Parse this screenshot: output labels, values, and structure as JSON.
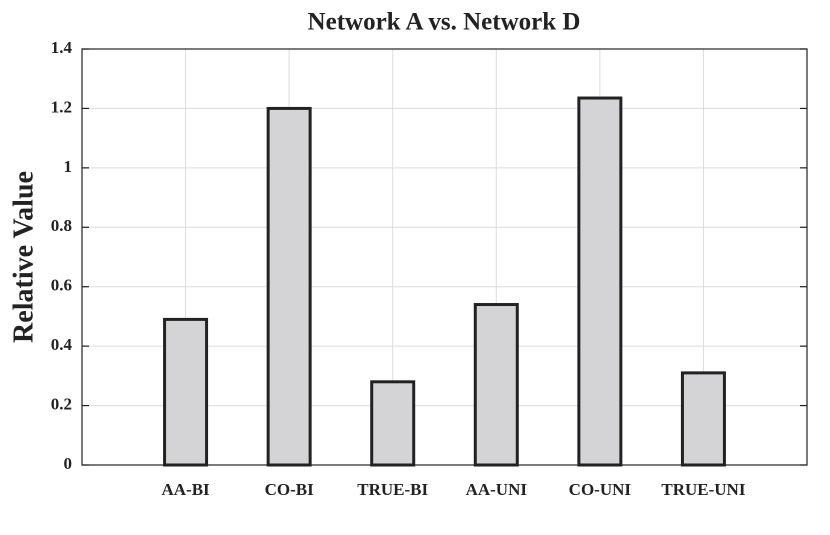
{
  "chart_data": {
    "type": "bar",
    "title": "Network A vs. Network D",
    "y_label": "Relative Value",
    "categories": [
      "AA-BI",
      "CO-BI",
      "TRUE-BI",
      "AA-UNI",
      "CO-UNI",
      "TRUE-UNI"
    ],
    "values": [
      0.49,
      1.2,
      0.28,
      0.54,
      1.235,
      0.31
    ],
    "color": "#d4d4d6",
    "edge_color": "#222222",
    "ylim": [
      0,
      1.4
    ],
    "yticks": [
      0,
      0.2,
      0.4,
      0.6,
      0.8,
      1,
      1.2,
      1.4
    ],
    "grid": true
  }
}
